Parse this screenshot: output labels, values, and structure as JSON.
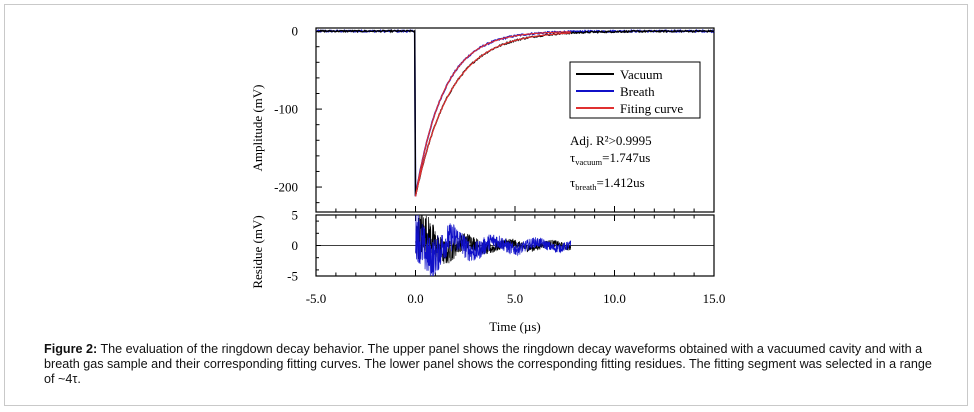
{
  "chart_data": [
    {
      "type": "line",
      "panel": "top",
      "ylabel": "Amplitude (mV)",
      "xlim": [
        -5.0,
        15.0
      ],
      "ylim": [
        -232,
        4
      ],
      "y_ticks": [
        0,
        -100,
        -200
      ],
      "y_tick_labels": [
        "0",
        "-100",
        "-200"
      ],
      "series": [
        {
          "name": "Vacuum",
          "color": "#000000",
          "t0": 0.0,
          "amplitude": -212,
          "tau": 1.747,
          "noise": 1.0
        },
        {
          "name": "Breath",
          "color": "#1010c8",
          "t0": 0.0,
          "amplitude": -212,
          "tau": 1.412,
          "noise": 1.0
        },
        {
          "name": "Fiting curve",
          "color": "#e03030",
          "fit_range": [
            0.0,
            7.8
          ],
          "note": "fits overlay both decays"
        }
      ],
      "legend": [
        "Vacuum",
        "Breath",
        "Fiting curve"
      ],
      "legend_position": "top-right",
      "annotations": {
        "adj_r2": "Adj. R²>0.9995",
        "tau_symbol": "τ",
        "tau_vacuum_sub": "vacuum",
        "tau_vacuum_val": "=1.747us",
        "tau_breath_sub": "breath",
        "tau_breath_val": "=1.412us"
      }
    },
    {
      "type": "line",
      "panel": "bottom",
      "ylabel": "Residue (mV)",
      "xlabel": "Time (µs)",
      "xlim": [
        -5.0,
        15.0
      ],
      "ylim": [
        -5,
        5
      ],
      "y_ticks": [
        5,
        0,
        -5
      ],
      "y_tick_labels": [
        "5",
        "0",
        "-5"
      ],
      "x_ticks": [
        -5.0,
        0.0,
        5.0,
        10.0,
        15.0
      ],
      "x_tick_labels": [
        "-5.0",
        "0.0",
        "5.0",
        "10.0",
        "15.0"
      ],
      "series": [
        {
          "name": "Vacuum residue",
          "color": "#000000",
          "range": [
            0.0,
            7.8
          ],
          "peak": 4.5
        },
        {
          "name": "Breath residue",
          "color": "#1010c8",
          "range": [
            0.0,
            7.8
          ],
          "peak": 4.5
        }
      ],
      "zero_line": true
    }
  ],
  "caption": {
    "label": "Figure 2:",
    "text": " The evaluation of the ringdown decay behavior. The upper panel shows the ringdown decay waveforms obtained with a vacuumed cavity and with a breath gas sample and their corresponding fitting curves. The lower panel shows the corresponding fitting residues. The fitting segment was selected in a range of ~4τ."
  }
}
